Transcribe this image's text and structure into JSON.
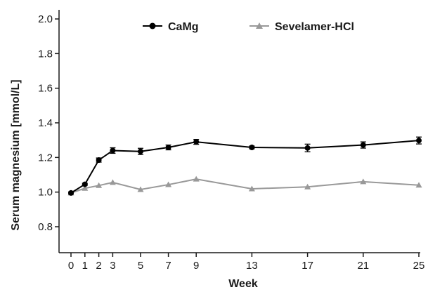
{
  "chart_data": {
    "type": "line",
    "xlabel": "Week",
    "ylabel": "Serum magnesium [mmol/L]",
    "ylim": [
      0.7,
      2.05
    ],
    "yticks": [
      "0.8",
      "1.0",
      "1.2",
      "1.4",
      "1.6",
      "1.8",
      "2.0"
    ],
    "xticks": [
      "0",
      "1",
      "2",
      "3",
      "5",
      "7",
      "9",
      "13",
      "17",
      "21",
      "25"
    ],
    "x": [
      0,
      1,
      2,
      3,
      5,
      7,
      9,
      13,
      17,
      21,
      25
    ],
    "legend_position": "top",
    "grid": false,
    "series": [
      {
        "name": "CaMg",
        "color": "#000000",
        "marker": "circle",
        "values": [
          0.995,
          1.045,
          1.185,
          1.24,
          1.235,
          1.258,
          1.29,
          1.258,
          1.255,
          1.272,
          1.298
        ],
        "errors": [
          0.006,
          0.006,
          0.012,
          0.016,
          0.018,
          0.014,
          0.014,
          0.008,
          0.022,
          0.018,
          0.02
        ]
      },
      {
        "name": "Sevelamer-HCl",
        "color": "#999999",
        "marker": "triangle",
        "values": [
          0.995,
          1.022,
          1.038,
          1.056,
          1.015,
          1.043,
          1.075,
          1.019,
          1.03,
          1.06,
          1.04
        ],
        "errors": [
          0.0,
          0.0,
          0.0,
          0.0,
          0.0,
          0.0,
          0.0,
          0.0,
          0.0,
          0.0,
          0.0
        ]
      }
    ]
  }
}
